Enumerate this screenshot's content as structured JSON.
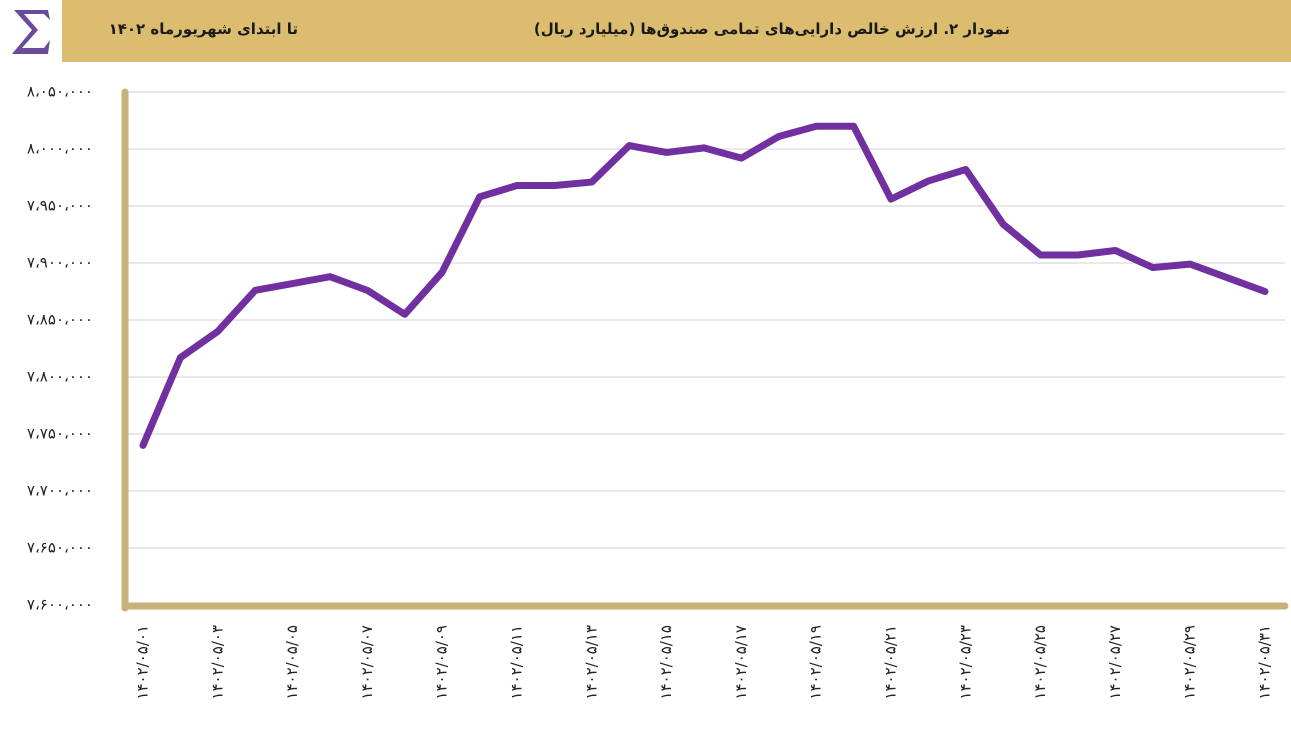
{
  "chart_data": {
    "type": "line",
    "title": "نمودار ۲. ارزش خالص دارایی‌های تمامی صندوق‌ها (میلیارد ریال)",
    "subtitle": "تا ابتدای شهریورماه ۱۴۰۲",
    "categories": [
      "۱۴۰۲/۰۵/۰۱",
      null,
      "۱۴۰۲/۰۵/۰۳",
      null,
      "۱۴۰۲/۰۵/۰۵",
      null,
      "۱۴۰۲/۰۵/۰۷",
      null,
      "۱۴۰۲/۰۵/۰۹",
      null,
      "۱۴۰۲/۰۵/۱۱",
      null,
      "۱۴۰۲/۰۵/۱۳",
      null,
      "۱۴۰۲/۰۵/۱۵",
      null,
      "۱۴۰۲/۰۵/۱۷",
      null,
      "۱۴۰۲/۰۵/۱۹",
      null,
      "۱۴۰۲/۰۵/۲۱",
      null,
      "۱۴۰۲/۰۵/۲۳",
      null,
      "۱۴۰۲/۰۵/۲۵",
      null,
      "۱۴۰۲/۰۵/۲۷",
      null,
      "۱۴۰۲/۰۵/۲۹",
      null,
      "۱۴۰۲/۰۵/۳۱"
    ],
    "values": [
      7740000,
      7817000,
      7840000,
      7876000,
      7882000,
      7888000,
      7876000,
      7855000,
      7892000,
      7958000,
      7968000,
      7968000,
      7971000,
      8003000,
      7997000,
      8001000,
      7992000,
      8011000,
      8020000,
      8020000,
      7956000,
      7972000,
      7982000,
      7934000,
      7907000,
      7907000,
      7911000,
      7896000,
      7899000,
      7887000,
      7875000
    ],
    "color": "#7030a0",
    "ylim": [
      7600000,
      8050000
    ],
    "yticks": [
      {
        "value": 7600000,
        "label": "۷،۶۰۰،۰۰۰"
      },
      {
        "value": 7650000,
        "label": "۷،۶۵۰،۰۰۰"
      },
      {
        "value": 7700000,
        "label": "۷،۷۰۰،۰۰۰"
      },
      {
        "value": 7750000,
        "label": "۷،۷۵۰،۰۰۰"
      },
      {
        "value": 7800000,
        "label": "۷،۸۰۰،۰۰۰"
      },
      {
        "value": 7850000,
        "label": "۷،۸۵۰،۰۰۰"
      },
      {
        "value": 7900000,
        "label": "۷،۹۰۰،۰۰۰"
      },
      {
        "value": 7950000,
        "label": "۷،۹۵۰،۰۰۰"
      },
      {
        "value": 8000000,
        "label": "۸،۰۰۰،۰۰۰"
      },
      {
        "value": 8050000,
        "label": "۸،۰۵۰،۰۰۰"
      }
    ],
    "grid": true
  }
}
